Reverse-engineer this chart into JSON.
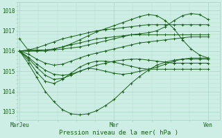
{
  "xlabel": "Pression niveau de la mer( hPa )",
  "xtick_labels": [
    "MarJeu",
    "Mer",
    "Ven"
  ],
  "xtick_positions": [
    0.0,
    0.5,
    1.0
  ],
  "ytick_labels": [
    "1013",
    "1014",
    "1015",
    "1016",
    "1017",
    "1018"
  ],
  "ytick_values": [
    1013,
    1014,
    1015,
    1016,
    1017,
    1018
  ],
  "ylim": [
    1012.6,
    1018.4
  ],
  "xlim": [
    -0.01,
    1.06
  ],
  "bg_color": "#cceee4",
  "grid_major_color": "#aad4c4",
  "grid_minor_color": "#b8ddd0",
  "line_color": "#1a5e1a",
  "series": [
    [
      1016.6,
      1016.05,
      1016.05,
      1016.05,
      1016.1,
      1016.2,
      1016.35,
      1016.55,
      1016.75,
      1016.95,
      1017.1,
      1017.25,
      1017.4,
      1017.55,
      1017.7,
      1017.8,
      1017.75,
      1017.5,
      1017.1,
      1016.55,
      1016.1,
      1015.8,
      1015.65
    ],
    [
      1016.0,
      1015.4,
      1014.7,
      1014.0,
      1013.5,
      1013.1,
      1012.9,
      1012.85,
      1012.9,
      1013.05,
      1013.3,
      1013.6,
      1014.0,
      1014.4,
      1014.75,
      1015.05,
      1015.3,
      1015.45,
      1015.55,
      1015.6,
      1015.6,
      1015.6,
      1015.6
    ],
    [
      1016.0,
      1015.7,
      1015.35,
      1015.05,
      1014.85,
      1014.8,
      1014.85,
      1015.0,
      1015.15,
      1015.3,
      1015.4,
      1015.5,
      1015.55,
      1015.6,
      1015.6,
      1015.55,
      1015.5,
      1015.45,
      1015.4,
      1015.4,
      1015.4,
      1015.4,
      1015.4
    ],
    [
      1016.0,
      1016.05,
      1016.15,
      1016.3,
      1016.45,
      1016.6,
      1016.7,
      1016.8,
      1016.9,
      1017.0,
      1017.05,
      1017.1,
      1017.15,
      1017.2,
      1017.25,
      1017.3,
      1017.3,
      1017.3,
      1017.3,
      1017.3,
      1017.3,
      1017.3,
      1017.3
    ],
    [
      1016.0,
      1016.0,
      1016.0,
      1016.05,
      1016.1,
      1016.2,
      1016.3,
      1016.4,
      1016.5,
      1016.6,
      1016.65,
      1016.7,
      1016.75,
      1016.8,
      1016.8,
      1016.8,
      1016.8,
      1016.8,
      1016.8,
      1016.8,
      1016.8,
      1016.8,
      1016.8
    ],
    [
      1016.0,
      1015.85,
      1015.6,
      1015.4,
      1015.3,
      1015.35,
      1015.5,
      1015.65,
      1015.8,
      1015.9,
      1016.0,
      1016.1,
      1016.2,
      1016.3,
      1016.4,
      1016.45,
      1016.5,
      1016.55,
      1016.6,
      1016.65,
      1016.7,
      1016.7,
      1016.7
    ],
    [
      1016.0,
      1015.55,
      1014.95,
      1014.5,
      1014.4,
      1014.6,
      1014.9,
      1015.2,
      1015.4,
      1015.5,
      1015.5,
      1015.45,
      1015.35,
      1015.25,
      1015.15,
      1015.1,
      1015.1,
      1015.1,
      1015.1,
      1015.1,
      1015.1,
      1015.1,
      1015.1
    ],
    [
      1016.0,
      1016.0,
      1016.0,
      1016.0,
      1016.05,
      1016.1,
      1016.15,
      1016.2,
      1016.3,
      1016.4,
      1016.5,
      1016.6,
      1016.7,
      1016.8,
      1016.85,
      1016.9,
      1017.0,
      1017.2,
      1017.5,
      1017.75,
      1017.85,
      1017.8,
      1017.55
    ],
    [
      1016.0,
      1015.65,
      1015.2,
      1014.8,
      1014.6,
      1014.65,
      1014.8,
      1015.0,
      1015.15,
      1015.1,
      1015.0,
      1014.9,
      1014.85,
      1014.9,
      1015.0,
      1015.1,
      1015.2,
      1015.35,
      1015.5,
      1015.6,
      1015.65,
      1015.65,
      1015.65
    ]
  ]
}
